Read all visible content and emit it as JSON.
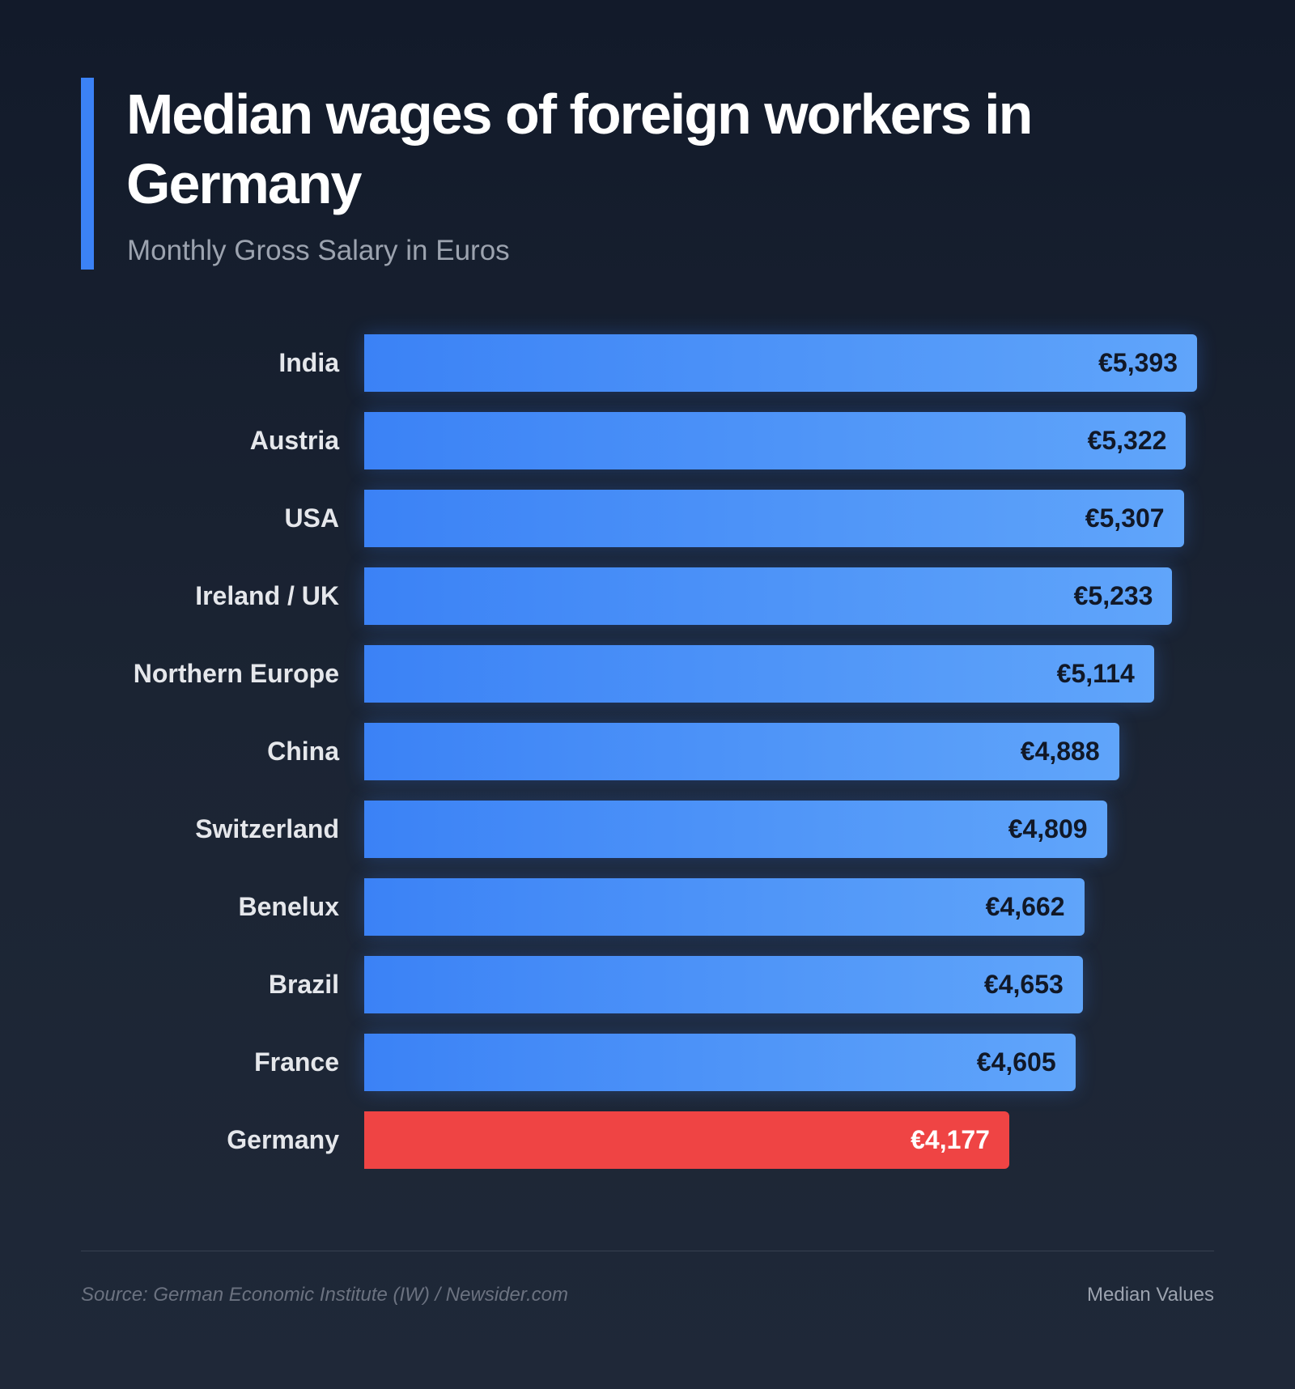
{
  "header": {
    "title": "Median wages of foreign workers in Germany",
    "subtitle": "Monthly Gross Salary in Euros"
  },
  "chart_data": {
    "type": "bar",
    "orientation": "horizontal",
    "title": "Median wages of foreign workers in Germany",
    "subtitle": "Monthly Gross Salary in Euros",
    "categories": [
      "India",
      "Austria",
      "USA",
      "Ireland / UK",
      "Northern Europe",
      "China",
      "Switzerland",
      "Benelux",
      "Brazil",
      "France",
      "Germany"
    ],
    "values": [
      5393,
      5322,
      5307,
      5233,
      5114,
      4888,
      4809,
      4662,
      4653,
      4605,
      4177
    ],
    "value_labels": [
      "€5,393",
      "€5,322",
      "€5,307",
      "€5,233",
      "€5,114",
      "€4,888",
      "€4,809",
      "€4,662",
      "€4,653",
      "€4,605",
      "€4,177"
    ],
    "highlight": "Germany",
    "colors": {
      "bar": "#3b82f6",
      "bar_gradient_end": "#60a5fa",
      "highlight": "#ef4444"
    },
    "xlim": [
      0,
      5393
    ],
    "grid": false
  },
  "footer": {
    "source": "Source: German Economic Institute (IW) / Newsider.com",
    "note": "Median Values"
  }
}
